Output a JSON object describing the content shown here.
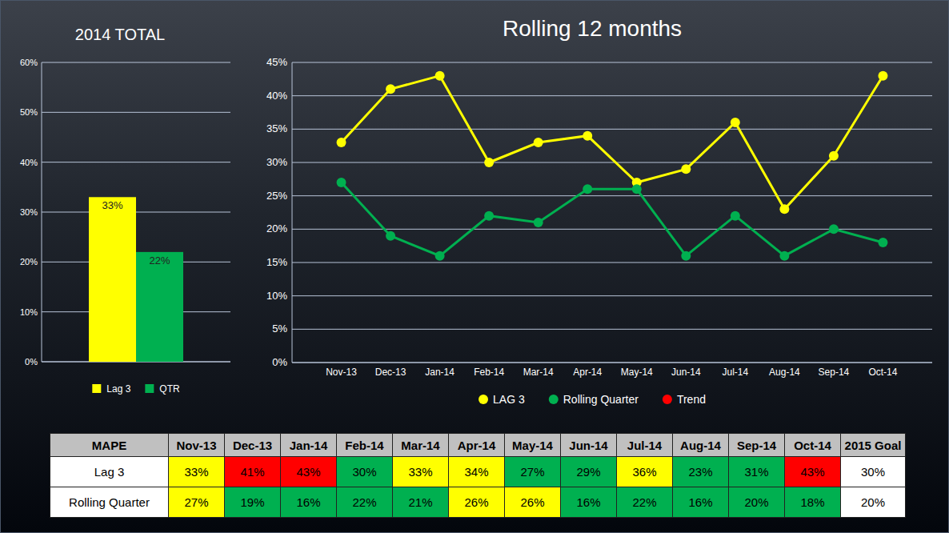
{
  "chart_data": [
    {
      "type": "bar",
      "title": "2014 TOTAL",
      "categories": [
        null
      ],
      "series": [
        {
          "name": "Lag 3",
          "color": "#ffff00",
          "values": [
            33
          ],
          "value_labels": [
            "33%"
          ]
        },
        {
          "name": "QTR",
          "color": "#00b050",
          "values": [
            22
          ],
          "value_labels": [
            "22%"
          ]
        }
      ],
      "ylim": [
        0,
        60
      ],
      "yticks": [
        {
          "value": 0,
          "label": "0%"
        },
        {
          "value": 10,
          "label": "10%"
        },
        {
          "value": 20,
          "label": "20%"
        },
        {
          "value": 30,
          "label": "30%"
        },
        {
          "value": 40,
          "label": "40%"
        },
        {
          "value": 50,
          "label": "50%"
        },
        {
          "value": 60,
          "label": "60%"
        }
      ],
      "grid": true,
      "legend": "bottom",
      "data_labels": true
    },
    {
      "type": "line",
      "title": "Rolling 12 months",
      "categories": [
        "Nov-13",
        "Dec-13",
        "Jan-14",
        "Feb-14",
        "Mar-14",
        "Apr-14",
        "May-14",
        "Jun-14",
        "Jul-14",
        "Aug-14",
        "Sep-14",
        "Oct-14"
      ],
      "series": [
        {
          "name": "LAG 3",
          "color": "#ffff00",
          "marker": "circle",
          "line_style": "solid",
          "values": [
            33,
            41,
            43,
            30,
            33,
            34,
            27,
            29,
            36,
            23,
            31,
            43
          ]
        },
        {
          "name": "Rolling Quarter",
          "color": "#00b050",
          "marker": "circle",
          "line_style": "solid",
          "values": [
            27,
            19,
            16,
            22,
            21,
            26,
            26,
            16,
            22,
            16,
            20,
            18
          ]
        },
        {
          "name": "Trend",
          "color": "#ff0000",
          "marker": "circle",
          "line_style": "solid",
          "values": [
            null,
            null,
            null,
            null,
            null,
            null,
            null,
            null,
            null,
            null,
            null,
            null
          ]
        }
      ],
      "ylim": [
        0,
        45
      ],
      "yticks": [
        {
          "value": 0,
          "label": "0%"
        },
        {
          "value": 5,
          "label": "5%"
        },
        {
          "value": 10,
          "label": "10%"
        },
        {
          "value": 15,
          "label": "15%"
        },
        {
          "value": 20,
          "label": "20%"
        },
        {
          "value": 25,
          "label": "25%"
        },
        {
          "value": 30,
          "label": "30%"
        },
        {
          "value": 35,
          "label": "35%"
        },
        {
          "value": 40,
          "label": "40%"
        },
        {
          "value": 45,
          "label": "45%"
        }
      ],
      "grid": true,
      "legend": "bottom"
    }
  ],
  "table": {
    "header": [
      "MAPE",
      "Nov-13",
      "Dec-13",
      "Jan-14",
      "Feb-14",
      "Mar-14",
      "Apr-14",
      "May-14",
      "Jun-14",
      "Jul-14",
      "Aug-14",
      "Sep-14",
      "Oct-14",
      "2015 Goal"
    ],
    "rows": [
      [
        "Lag 3",
        "33%",
        "41%",
        "43%",
        "30%",
        "33%",
        "34%",
        "27%",
        "29%",
        "36%",
        "23%",
        "31%",
        "43%",
        "30%"
      ],
      [
        "Rolling Quarter",
        "27%",
        "19%",
        "16%",
        "22%",
        "21%",
        "26%",
        "26%",
        "16%",
        "22%",
        "16%",
        "20%",
        "18%",
        "20%"
      ]
    ],
    "cell_colors": [
      [
        "#ffffff",
        "#ffff00",
        "#ff0000",
        "#ff0000",
        "#00b050",
        "#ffff00",
        "#ffff00",
        "#00b050",
        "#00b050",
        "#ffff00",
        "#00b050",
        "#00b050",
        "#ff0000",
        "#ffffff"
      ],
      [
        "#ffffff",
        "#ffff00",
        "#00b050",
        "#00b050",
        "#00b050",
        "#00b050",
        "#ffff00",
        "#ffff00",
        "#00b050",
        "#00b050",
        "#00b050",
        "#00b050",
        "#00b050",
        "#ffffff"
      ]
    ]
  }
}
